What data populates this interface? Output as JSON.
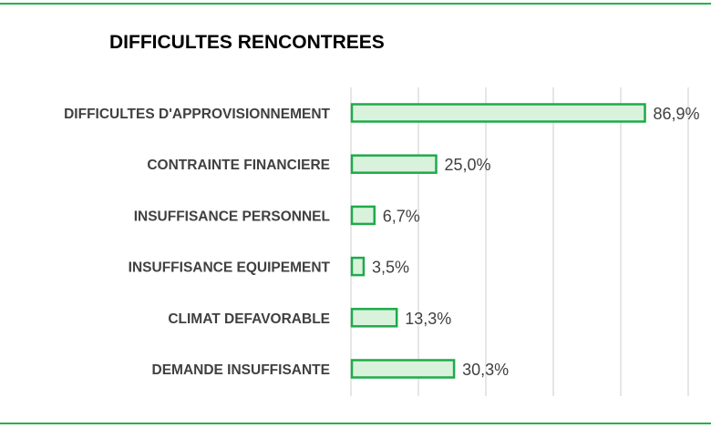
{
  "colors": {
    "bar_fill": "#d9f2dc",
    "bar_stroke": "#1faa4b",
    "frame": "#22b24c",
    "grid": "#d9d9d9",
    "text": "#404040"
  },
  "chart_data": {
    "type": "bar",
    "orientation": "horizontal",
    "title": "DIFFICULTES RENCONTREES",
    "categories": [
      "DIFFICULTES D'APPROVISIONNEMENT",
      "CONTRAINTE FINANCIERE",
      "INSUFFISANCE PERSONNEL",
      "INSUFFISANCE EQUIPEMENT",
      "CLIMAT DEFAVORABLE",
      "DEMANDE INSUFFISANTE"
    ],
    "values": [
      86.9,
      25.0,
      6.7,
      3.5,
      13.3,
      30.3
    ],
    "value_labels": [
      "86,9%",
      "25,0%",
      "6,7%",
      "3,5%",
      "13,3%",
      "30,3%"
    ],
    "xlim": [
      0,
      100
    ],
    "gridlines": [
      0,
      20,
      40,
      60,
      80,
      100
    ],
    "grid": true,
    "legend": "none"
  }
}
